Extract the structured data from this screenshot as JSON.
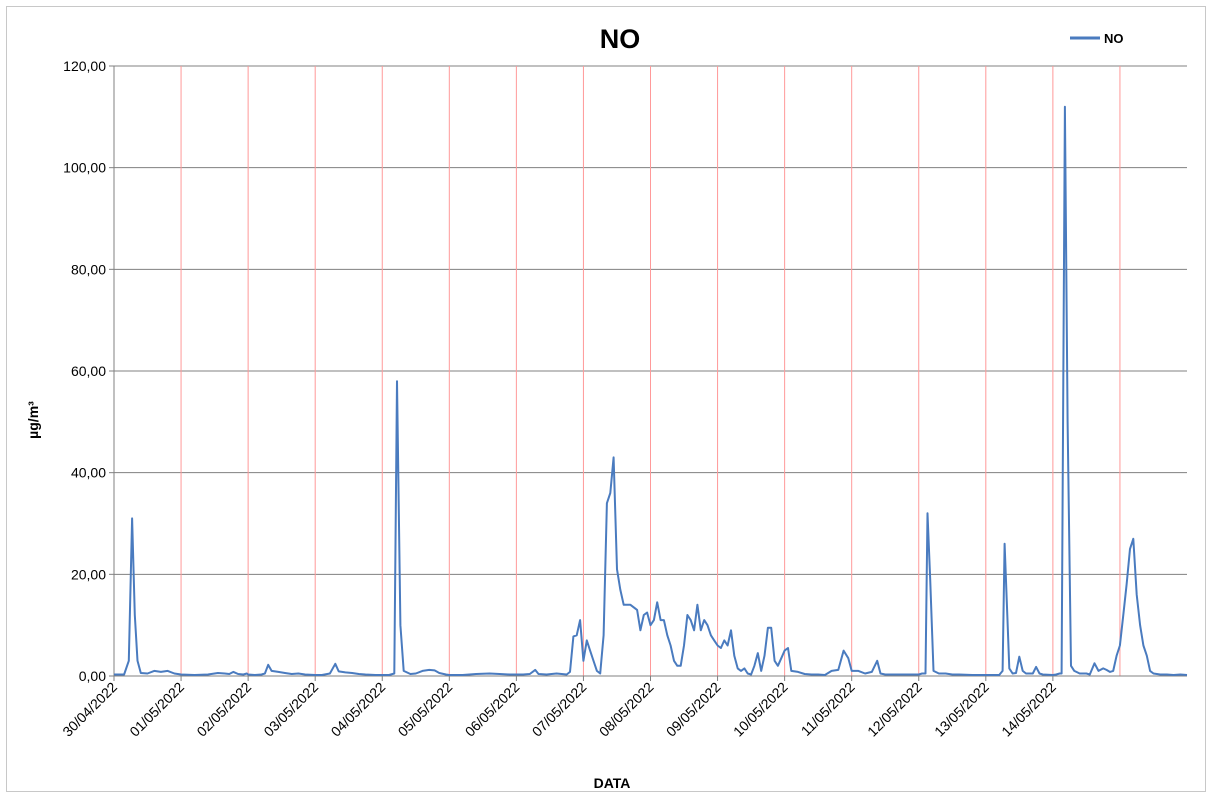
{
  "chart_data": {
    "type": "line",
    "title": "NO",
    "xlabel": "DATA",
    "ylabel": "µg/m³",
    "ylim": [
      0,
      120
    ],
    "ytick_values": [
      0,
      20,
      40,
      60,
      80,
      100,
      120
    ],
    "ytick_labels": [
      "0,00",
      "20,00",
      "40,00",
      "60,00",
      "80,00",
      "100,00",
      "120,00"
    ],
    "x_dates": [
      "30/04/2022",
      "01/05/2022",
      "02/05/2022",
      "03/05/2022",
      "04/05/2022",
      "05/05/2022",
      "06/05/2022",
      "07/05/2022",
      "08/05/2022",
      "09/05/2022",
      "10/05/2022",
      "11/05/2022",
      "12/05/2022",
      "13/05/2022",
      "14/05/2022"
    ],
    "xlim_days": [
      0,
      15
    ],
    "legend": "top-right",
    "grid": {
      "horizontal": true,
      "horizontal_color": "#808080",
      "vertical": true,
      "vertical_color": "#ff9999"
    },
    "series": [
      {
        "name": "NO",
        "color": "#4a7bbf",
        "points": [
          [
            0,
            0.3
          ],
          [
            0.15,
            0.3
          ],
          [
            0.22,
            3
          ],
          [
            0.27,
            31
          ],
          [
            0.31,
            12
          ],
          [
            0.35,
            3
          ],
          [
            0.4,
            0.6
          ],
          [
            0.5,
            0.5
          ],
          [
            0.6,
            1.0
          ],
          [
            0.7,
            0.8
          ],
          [
            0.8,
            1.0
          ],
          [
            0.9,
            0.5
          ],
          [
            1.0,
            0.3
          ],
          [
            1.2,
            0.2
          ],
          [
            1.4,
            0.3
          ],
          [
            1.55,
            0.6
          ],
          [
            1.65,
            0.5
          ],
          [
            1.72,
            0.4
          ],
          [
            1.78,
            0.8
          ],
          [
            1.85,
            0.4
          ],
          [
            1.93,
            0.3
          ],
          [
            1.98,
            0.5
          ],
          [
            2.0,
            0.3
          ],
          [
            2.1,
            0.2
          ],
          [
            2.2,
            0.3
          ],
          [
            2.25,
            0.5
          ],
          [
            2.3,
            2.2
          ],
          [
            2.35,
            1.0
          ],
          [
            2.45,
            0.8
          ],
          [
            2.55,
            0.6
          ],
          [
            2.65,
            0.4
          ],
          [
            2.75,
            0.5
          ],
          [
            2.85,
            0.3
          ],
          [
            3.0,
            0.2
          ],
          [
            3.1,
            0.2
          ],
          [
            3.22,
            0.5
          ],
          [
            3.3,
            2.4
          ],
          [
            3.35,
            0.9
          ],
          [
            3.45,
            0.7
          ],
          [
            3.55,
            0.6
          ],
          [
            3.65,
            0.4
          ],
          [
            3.75,
            0.3
          ],
          [
            3.9,
            0.2
          ],
          [
            4.1,
            0.2
          ],
          [
            4.18,
            0.5
          ],
          [
            4.22,
            58
          ],
          [
            4.27,
            10
          ],
          [
            4.32,
            1.0
          ],
          [
            4.42,
            0.4
          ],
          [
            4.5,
            0.5
          ],
          [
            4.6,
            1.0
          ],
          [
            4.7,
            1.2
          ],
          [
            4.78,
            1.1
          ],
          [
            4.85,
            0.6
          ],
          [
            4.95,
            0.3
          ],
          [
            5.0,
            0.2
          ],
          [
            5.2,
            0.2
          ],
          [
            5.4,
            0.4
          ],
          [
            5.6,
            0.5
          ],
          [
            5.75,
            0.4
          ],
          [
            5.9,
            0.3
          ],
          [
            6.1,
            0.3
          ],
          [
            6.2,
            0.4
          ],
          [
            6.28,
            1.2
          ],
          [
            6.33,
            0.4
          ],
          [
            6.45,
            0.3
          ],
          [
            6.6,
            0.5
          ],
          [
            6.75,
            0.3
          ],
          [
            6.8,
            0.8
          ],
          [
            6.85,
            7.8
          ],
          [
            6.9,
            8
          ],
          [
            6.95,
            11
          ],
          [
            7.0,
            3
          ],
          [
            7.05,
            7
          ],
          [
            7.1,
            5
          ],
          [
            7.15,
            3
          ],
          [
            7.2,
            1.0
          ],
          [
            7.25,
            0.5
          ],
          [
            7.3,
            8
          ],
          [
            7.35,
            34
          ],
          [
            7.4,
            36
          ],
          [
            7.45,
            43
          ],
          [
            7.5,
            21
          ],
          [
            7.55,
            17
          ],
          [
            7.6,
            14
          ],
          [
            7.7,
            14
          ],
          [
            7.8,
            13
          ],
          [
            7.85,
            9
          ],
          [
            7.9,
            12
          ],
          [
            7.95,
            12.5
          ],
          [
            8.0,
            10
          ],
          [
            8.05,
            11
          ],
          [
            8.1,
            14.5
          ],
          [
            8.15,
            11
          ],
          [
            8.2,
            11
          ],
          [
            8.25,
            8
          ],
          [
            8.3,
            6
          ],
          [
            8.35,
            3
          ],
          [
            8.4,
            2
          ],
          [
            8.45,
            2
          ],
          [
            8.5,
            6
          ],
          [
            8.55,
            12
          ],
          [
            8.6,
            11
          ],
          [
            8.65,
            9
          ],
          [
            8.7,
            14
          ],
          [
            8.75,
            9
          ],
          [
            8.8,
            11
          ],
          [
            8.85,
            10
          ],
          [
            8.9,
            8
          ],
          [
            8.95,
            7
          ],
          [
            9.0,
            6
          ],
          [
            9.05,
            5.5
          ],
          [
            9.1,
            7
          ],
          [
            9.15,
            6
          ],
          [
            9.2,
            9
          ],
          [
            9.25,
            4
          ],
          [
            9.3,
            1.5
          ],
          [
            9.35,
            1
          ],
          [
            9.4,
            1.5
          ],
          [
            9.45,
            0.5
          ],
          [
            9.5,
            0.3
          ],
          [
            9.55,
            2
          ],
          [
            9.6,
            4.5
          ],
          [
            9.65,
            1
          ],
          [
            9.7,
            4
          ],
          [
            9.75,
            9.5
          ],
          [
            9.8,
            9.5
          ],
          [
            9.85,
            3
          ],
          [
            9.9,
            2
          ],
          [
            9.95,
            3.5
          ],
          [
            10.0,
            5
          ],
          [
            10.05,
            5.5
          ],
          [
            10.1,
            1.0
          ],
          [
            10.2,
            0.8
          ],
          [
            10.3,
            0.4
          ],
          [
            10.4,
            0.3
          ],
          [
            10.5,
            0.3
          ],
          [
            10.6,
            0.2
          ],
          [
            10.7,
            1.0
          ],
          [
            10.8,
            1.2
          ],
          [
            10.88,
            5
          ],
          [
            10.95,
            3.5
          ],
          [
            11.0,
            1.0
          ],
          [
            11.1,
            1.0
          ],
          [
            11.2,
            0.5
          ],
          [
            11.3,
            0.8
          ],
          [
            11.38,
            3
          ],
          [
            11.43,
            0.5
          ],
          [
            11.5,
            0.3
          ],
          [
            11.6,
            0.3
          ],
          [
            12.0,
            0.3
          ],
          [
            12.05,
            0.5
          ],
          [
            12.1,
            0.5
          ],
          [
            12.13,
            32
          ],
          [
            12.17,
            19
          ],
          [
            12.22,
            1.0
          ],
          [
            12.3,
            0.5
          ],
          [
            12.4,
            0.5
          ],
          [
            12.5,
            0.3
          ],
          [
            12.6,
            0.3
          ],
          [
            12.8,
            0.2
          ],
          [
            13.0,
            0.2
          ],
          [
            13.2,
            0.2
          ],
          [
            13.25,
            1.0
          ],
          [
            13.28,
            26
          ],
          [
            13.32,
            12
          ],
          [
            13.35,
            1.5
          ],
          [
            13.4,
            0.5
          ],
          [
            13.45,
            0.6
          ],
          [
            13.5,
            3.8
          ],
          [
            13.55,
            1.0
          ],
          [
            13.6,
            0.5
          ],
          [
            13.7,
            0.5
          ],
          [
            13.75,
            1.8
          ],
          [
            13.8,
            0.5
          ],
          [
            13.85,
            0.3
          ],
          [
            14.0,
            0.2
          ],
          [
            14.05,
            0.3
          ],
          [
            14.1,
            0.5
          ],
          [
            14.13,
            0.5
          ],
          [
            14.18,
            112
          ],
          [
            14.22,
            50
          ],
          [
            14.27,
            2
          ],
          [
            14.32,
            1
          ],
          [
            14.4,
            0.5
          ],
          [
            14.5,
            0.5
          ],
          [
            14.55,
            0.3
          ],
          [
            14.62,
            2.5
          ],
          [
            14.68,
            1.0
          ],
          [
            14.75,
            1.5
          ],
          [
            14.8,
            1.2
          ],
          [
            14.85,
            0.8
          ],
          [
            14.9,
            1.0
          ],
          [
            14.95,
            4
          ],
          [
            15.0,
            6
          ],
          [
            15.05,
            12
          ],
          [
            15.1,
            18
          ],
          [
            15.15,
            25
          ],
          [
            15.2,
            27
          ],
          [
            15.25,
            16
          ],
          [
            15.3,
            10
          ],
          [
            15.35,
            6
          ],
          [
            15.4,
            4
          ],
          [
            15.45,
            1
          ],
          [
            15.5,
            0.5
          ],
          [
            15.6,
            0.3
          ],
          [
            15.7,
            0.3
          ],
          [
            15.8,
            0.2
          ],
          [
            15.9,
            0.3
          ],
          [
            16.0,
            0.2
          ]
        ]
      }
    ]
  }
}
